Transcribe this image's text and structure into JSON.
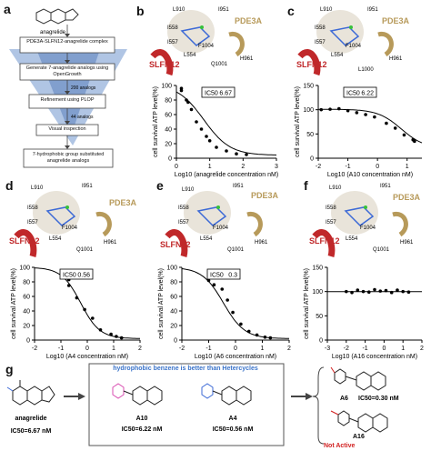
{
  "panels": {
    "a": {
      "label": "a",
      "molecule": "anagrelide",
      "steps": [
        "PDE3A-SLFN12-anagrelide complex",
        "Generate 7-anagrelide analogs using OpenGrowth",
        "Refinement using PLOP",
        "Visual inspection",
        "7-hydrophobic group substituted anagrelide analogs"
      ],
      "counts": [
        "200 analogs",
        "44 analogs"
      ]
    },
    "b": {
      "label": "b"
    },
    "c": {
      "label": "c"
    },
    "d": {
      "label": "d"
    },
    "e": {
      "label": "e"
    },
    "f": {
      "label": "f"
    },
    "g": {
      "label": "g",
      "anagrelide": "anagrelide",
      "anagrelide_ic50": "IC50=6.67 nM",
      "box_header": "hydrophobic benzene is better than Hetercycles",
      "a10": "A10",
      "a10_ic50": "IC50=6.22 nM",
      "a4": "A4",
      "a4_ic50": "IC50=0.56 nM",
      "a6": "A6",
      "a6_ic50": "IC50=0.30 nM",
      "a16": "A16",
      "a16_note": "Not Active"
    }
  },
  "structure_labels": {
    "pde3a": "PDE3A",
    "slfn12": "SLFN12",
    "residues": [
      "L910",
      "I951",
      "I558",
      "I557",
      "F1004",
      "L554",
      "Q1001",
      "H961",
      "L1000"
    ]
  },
  "colors": {
    "slfn12": "#c0282a",
    "pde3a": "#b79a5a",
    "box_blue": "#3a73c9",
    "not_active": "#d11f1f"
  },
  "chart_data": [
    {
      "id": "b",
      "type": "scatter",
      "ylabel": "cell survival ATP level(%)",
      "xlabel": "Log10 (anagrelide concentration nM)",
      "ic50_label": "IC50",
      "ic50_value": "6.67",
      "xlim": [
        0,
        3
      ],
      "ylim": [
        0,
        100
      ],
      "xticks": [
        0,
        1,
        2,
        3
      ],
      "yticks": [
        0,
        20,
        40,
        60,
        80,
        100
      ],
      "points": [
        [
          0.15,
          96
        ],
        [
          0.15,
          93
        ],
        [
          0.3,
          80
        ],
        [
          0.35,
          77
        ],
        [
          0.45,
          67
        ],
        [
          0.6,
          50
        ],
        [
          0.75,
          40
        ],
        [
          0.9,
          30
        ],
        [
          1.0,
          24
        ],
        [
          1.2,
          15
        ],
        [
          1.5,
          10
        ],
        [
          1.8,
          6
        ],
        [
          2.1,
          5
        ]
      ],
      "curve": {
        "top": 102,
        "bottom": 4,
        "x50": 0.82,
        "hill": 1.1
      }
    },
    {
      "id": "c",
      "type": "scatter",
      "ylabel": "cell survival ATP level(%)",
      "xlabel": "Log10 (A10 concentration nM)",
      "ic50_label": "IC50",
      "ic50_value": "6.22",
      "xlim": [
        -2,
        1.5
      ],
      "ylim": [
        0,
        150
      ],
      "xticks": [
        -2,
        -1,
        0,
        1
      ],
      "yticks": [
        0,
        50,
        100,
        150
      ],
      "points": [
        [
          -1.9,
          100
        ],
        [
          -1.6,
          101
        ],
        [
          -1.3,
          102
        ],
        [
          -1.0,
          98
        ],
        [
          -0.7,
          94
        ],
        [
          -0.4,
          90
        ],
        [
          -0.1,
          85
        ],
        [
          0.3,
          72
        ],
        [
          0.6,
          62
        ],
        [
          0.9,
          48
        ],
        [
          1.2,
          38
        ],
        [
          1.25,
          35
        ]
      ],
      "curve": {
        "top": 101,
        "bottom": 20,
        "x50": 0.8,
        "hill": 1.1
      }
    },
    {
      "id": "d",
      "type": "scatter",
      "ylabel": "cell survival ATP level(%)",
      "xlabel": "Log10 (A4 concentration nM)",
      "ic50_label": "IC50",
      "ic50_value": "0.56",
      "xlim": [
        -2,
        2
      ],
      "ylim": [
        0,
        100
      ],
      "xticks": [
        -2,
        -1,
        0,
        1,
        2
      ],
      "yticks": [
        0,
        20,
        40,
        60,
        80,
        100
      ],
      "points": [
        [
          -0.7,
          83
        ],
        [
          -0.7,
          75
        ],
        [
          -0.4,
          58
        ],
        [
          -0.1,
          42
        ],
        [
          0.2,
          30
        ],
        [
          0.5,
          14
        ],
        [
          0.9,
          8
        ],
        [
          1.1,
          5
        ],
        [
          1.3,
          3
        ]
      ],
      "curve": {
        "top": 100,
        "bottom": 2,
        "x50": -0.25,
        "hill": 1.2
      }
    },
    {
      "id": "e",
      "type": "scatter",
      "ylabel": "cell survival ATP level(%)",
      "xlabel": "Log10 (A6 concentration nM)",
      "ic50_label": "IC50",
      "ic50_value": "0.3",
      "xlim": [
        -2,
        2
      ],
      "ylim": [
        0,
        100
      ],
      "xticks": [
        -2,
        -1,
        0,
        1,
        2
      ],
      "yticks": [
        0,
        20,
        40,
        60,
        80,
        100
      ],
      "points": [
        [
          -1.0,
          82
        ],
        [
          -0.8,
          76
        ],
        [
          -0.5,
          70
        ],
        [
          -0.3,
          55
        ],
        [
          -0.1,
          38
        ],
        [
          0.2,
          22
        ],
        [
          0.5,
          12
        ],
        [
          0.8,
          7
        ],
        [
          1.1,
          4
        ],
        [
          1.3,
          3
        ]
      ],
      "curve": {
        "top": 100,
        "bottom": 2,
        "x50": -0.45,
        "hill": 1.1
      }
    },
    {
      "id": "f",
      "type": "scatter",
      "ylabel": "cell survival ATP level(%)",
      "xlabel": "Log10 (A16 concentration nM)",
      "xlim": [
        -3,
        2
      ],
      "ylim": [
        0,
        150
      ],
      "xticks": [
        -3,
        -2,
        -1,
        0,
        1,
        2
      ],
      "yticks": [
        0,
        50,
        100,
        150
      ],
      "points": [
        [
          -2,
          100
        ],
        [
          -1.7,
          98
        ],
        [
          -1.4,
          103
        ],
        [
          -1.1,
          100
        ],
        [
          -0.8,
          99
        ],
        [
          -0.5,
          104
        ],
        [
          -0.2,
          101
        ],
        [
          0.1,
          102
        ],
        [
          0.4,
          98
        ],
        [
          0.7,
          103
        ],
        [
          1.0,
          100
        ],
        [
          1.3,
          99
        ]
      ],
      "curve": {
        "top": 100,
        "bottom": 100,
        "x50": 0,
        "hill": 1
      }
    }
  ]
}
